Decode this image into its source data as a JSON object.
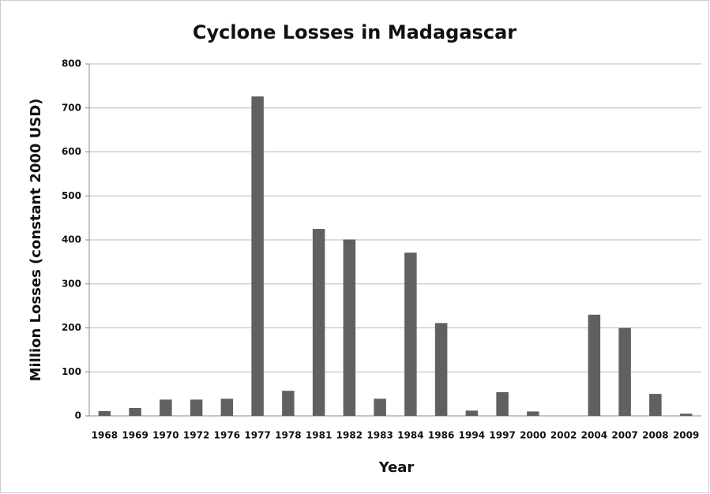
{
  "chart_data": {
    "type": "bar",
    "title": "Cyclone Losses in Madagascar",
    "x_label": "Year",
    "y_label": "Million Losses (constant  2000 USD)",
    "categories": [
      "1968",
      "1969",
      "1970",
      "1972",
      "1976",
      "1977",
      "1978",
      "1981",
      "1982",
      "1983",
      "1984",
      "1986",
      "1994",
      "1997",
      "2000",
      "2002",
      "2004",
      "2007",
      "2008",
      "2009"
    ],
    "values": [
      11,
      18,
      37,
      37,
      39,
      726,
      57,
      425,
      401,
      39,
      371,
      211,
      12,
      54,
      10,
      0,
      230,
      200,
      50,
      5
    ],
    "color": "#606060",
    "ylim": [
      0,
      800
    ],
    "yticks": [
      0,
      100,
      200,
      300,
      400,
      500,
      600,
      700,
      800
    ],
    "grid": true
  }
}
